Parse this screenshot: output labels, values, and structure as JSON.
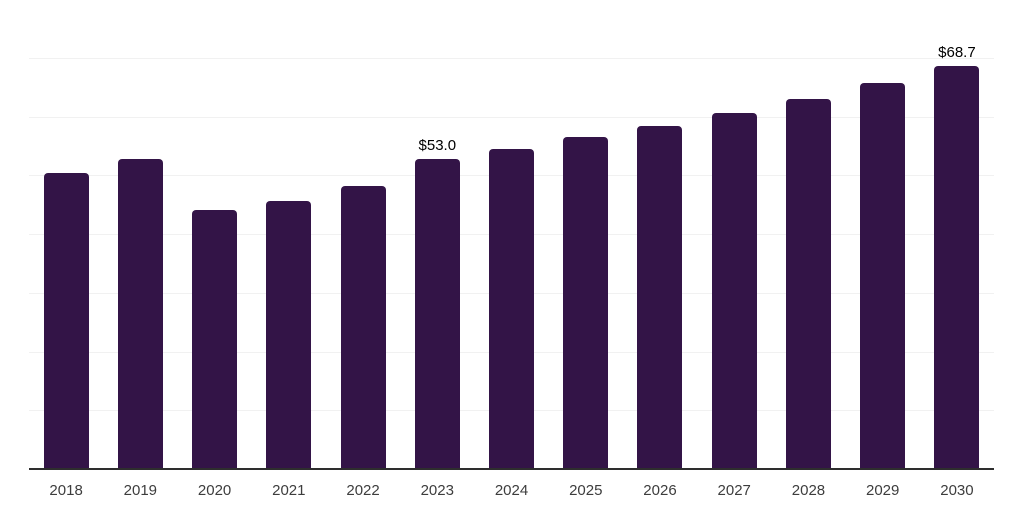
{
  "chart_data": {
    "type": "bar",
    "title": "",
    "xlabel": "",
    "ylabel": "",
    "categories": [
      "2018",
      "2019",
      "2020",
      "2021",
      "2022",
      "2023",
      "2024",
      "2025",
      "2026",
      "2027",
      "2028",
      "2029",
      "2030"
    ],
    "values": [
      50.6,
      52.9,
      44.3,
      45.8,
      48.3,
      53.0,
      54.6,
      56.7,
      58.6,
      60.8,
      63.1,
      65.9,
      68.7
    ],
    "annotations": [
      {
        "category": "2023",
        "label": "$53.0"
      },
      {
        "category": "2030",
        "label": "$68.7"
      }
    ],
    "ylim": [
      0,
      80
    ],
    "grid_step": 10,
    "grid": true,
    "legend": false,
    "y_axis_labels_visible": false,
    "bar_color": "#331447",
    "axis_color": "#2e2e2e",
    "grid_color": "#f1f1f1",
    "tick_label_color": "#3d3d3d",
    "annotation_color": "#000000",
    "background_color": "#ffffff"
  }
}
